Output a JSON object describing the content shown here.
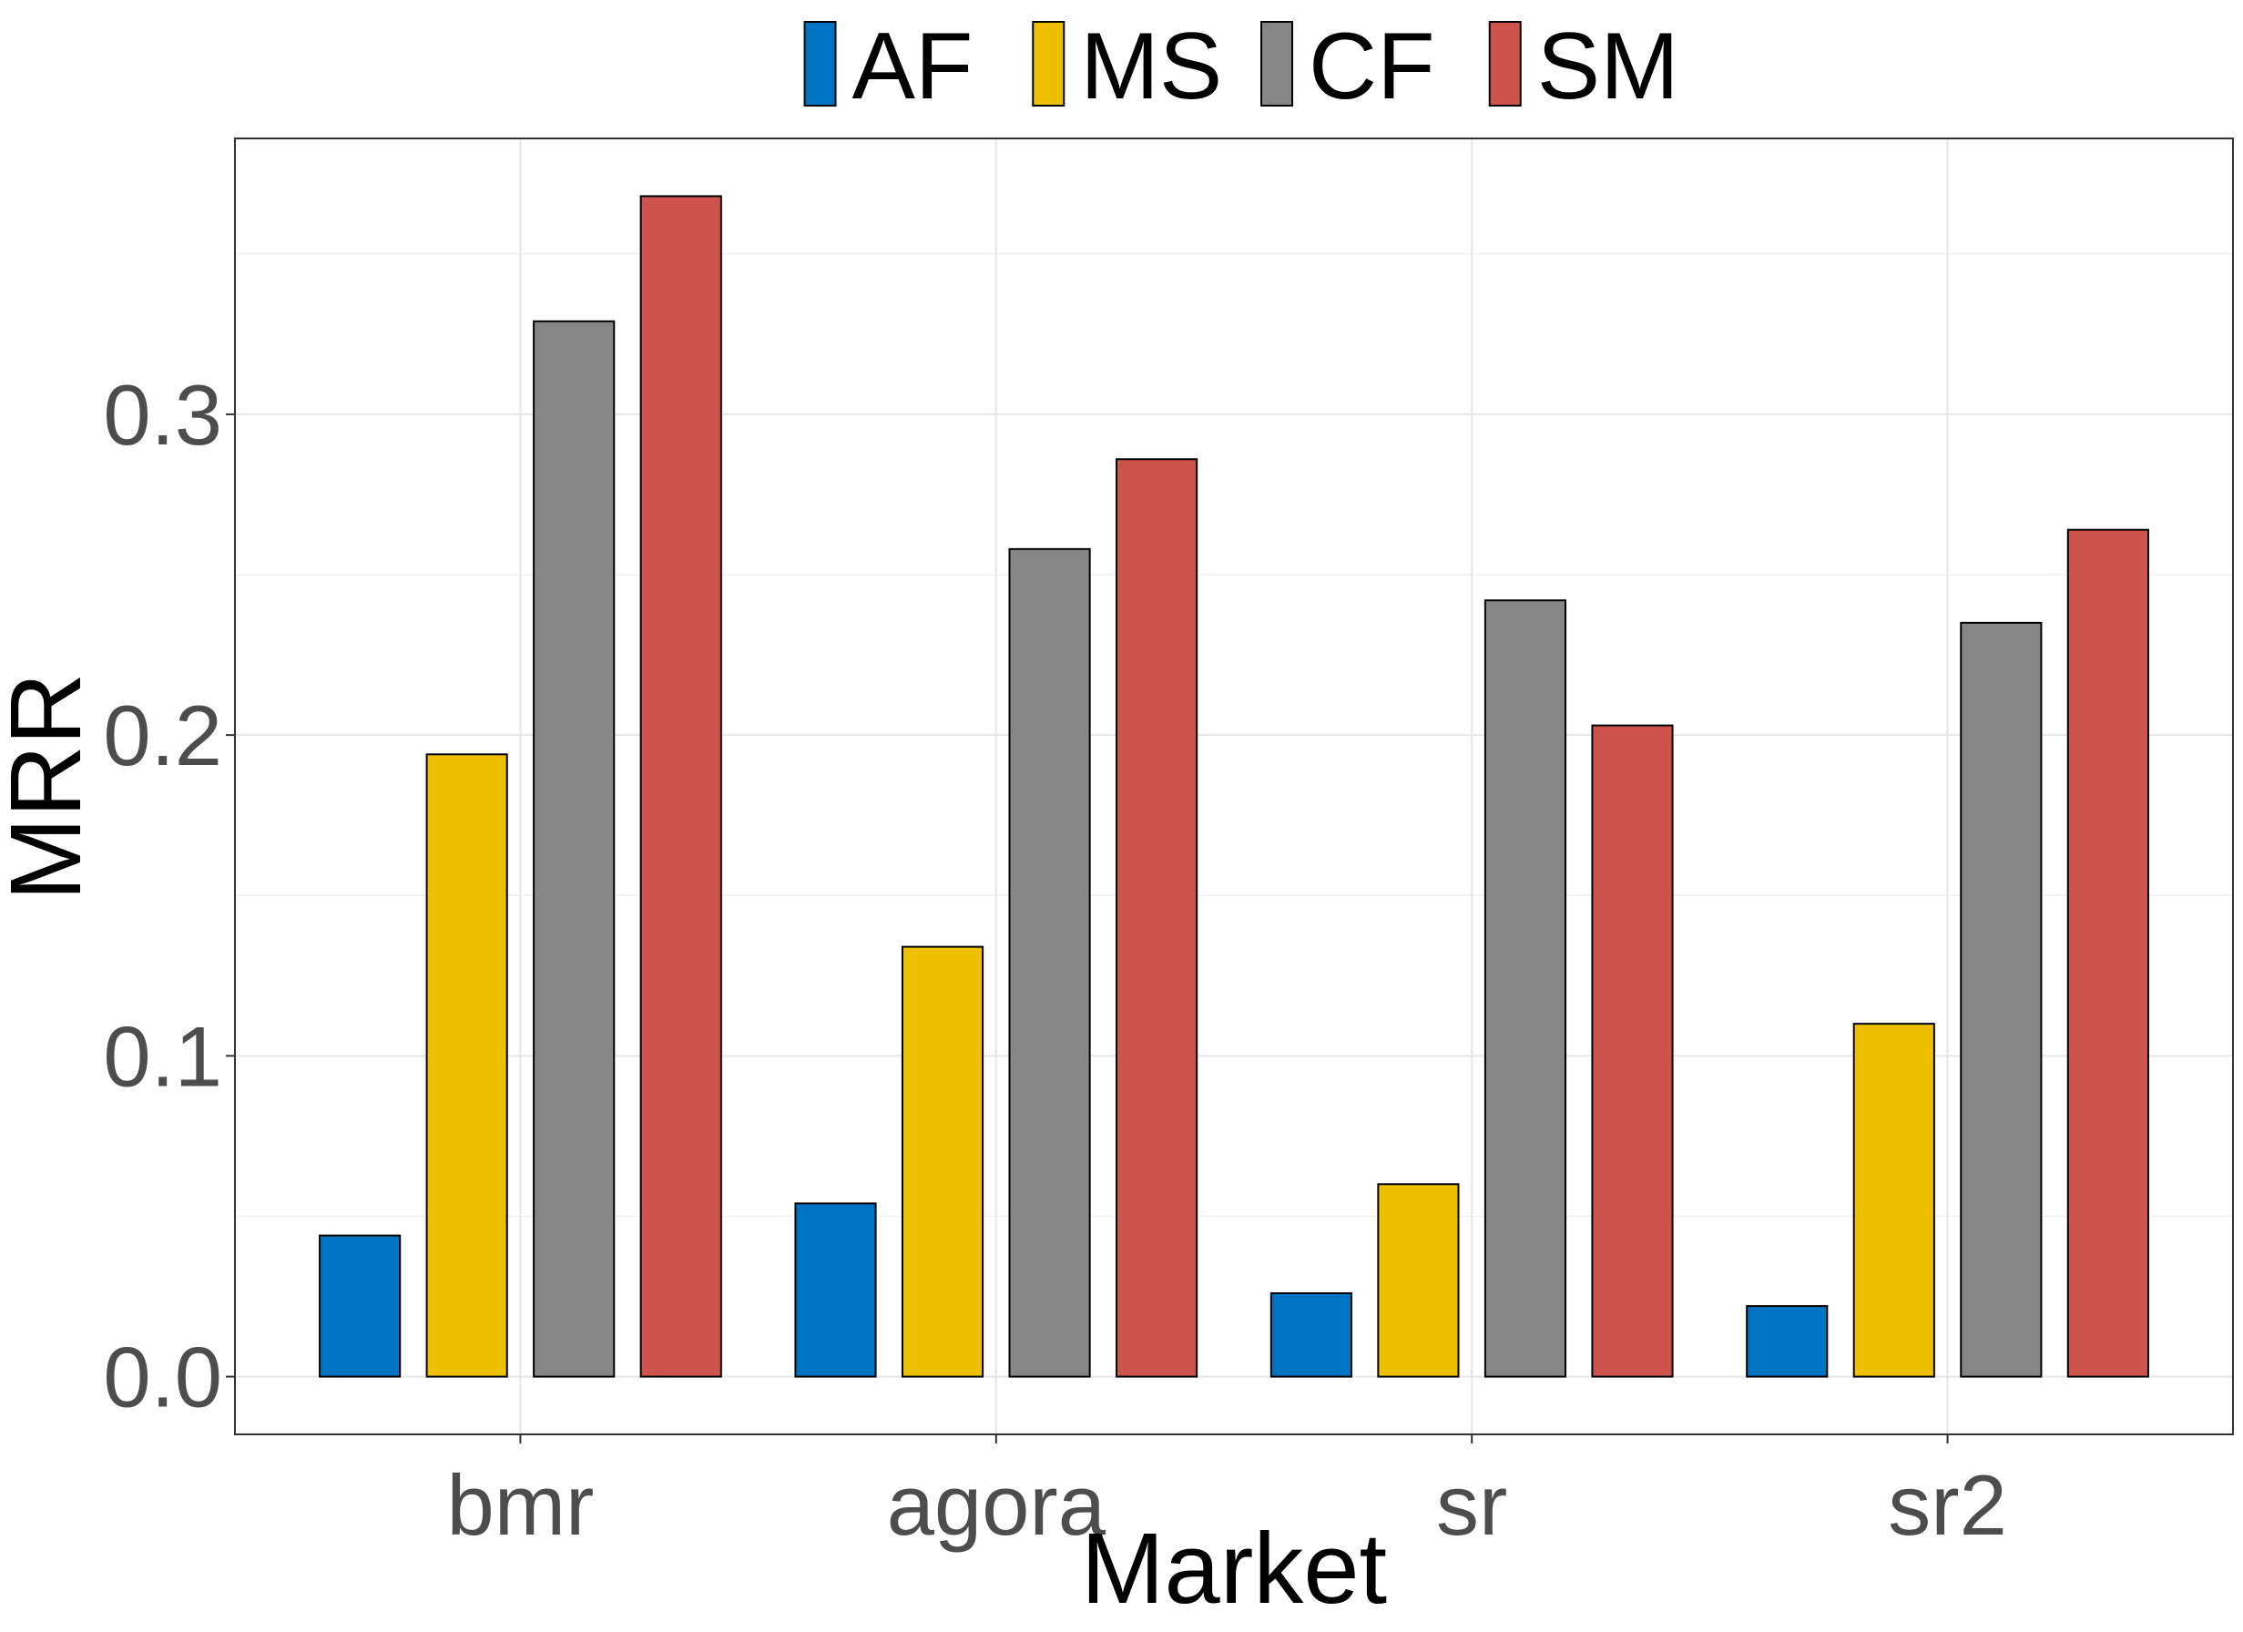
{
  "chart_data": {
    "type": "bar",
    "categories": [
      "bmr",
      "agora",
      "sr",
      "sr2"
    ],
    "series": [
      {
        "name": "AF",
        "color": "#0073C2",
        "values": [
          0.044,
          0.054,
          0.026,
          0.022
        ]
      },
      {
        "name": "MS",
        "color": "#EFC000",
        "values": [
          0.194,
          0.134,
          0.06,
          0.11
        ]
      },
      {
        "name": "CF",
        "color": "#868686",
        "values": [
          0.329,
          0.258,
          0.242,
          0.235
        ]
      },
      {
        "name": "SM",
        "color": "#CD534C",
        "values": [
          0.368,
          0.286,
          0.203,
          0.264
        ]
      }
    ],
    "xlabel": "Market",
    "ylabel": "MRR",
    "ylim": [
      -0.018,
      0.386
    ],
    "yticks": [
      0.0,
      0.1,
      0.2,
      0.3
    ],
    "ytick_labels": [
      "0.0",
      "0.1",
      "0.2",
      "0.3"
    ],
    "grid": true,
    "legend_position": "top"
  }
}
